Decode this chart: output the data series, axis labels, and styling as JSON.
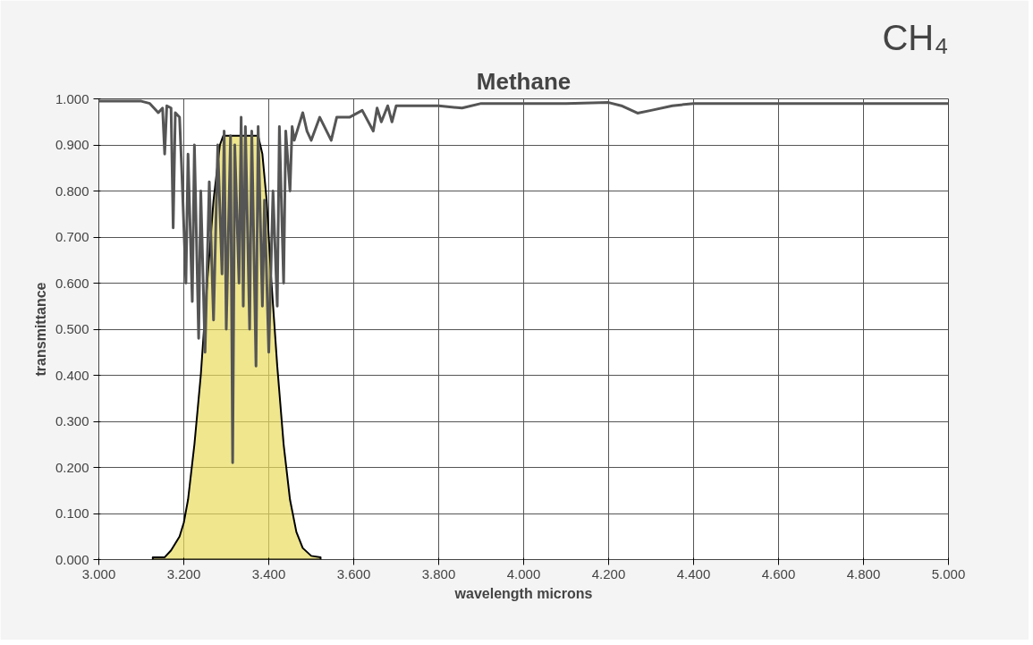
{
  "chart_data": {
    "type": "line",
    "title": "Methane",
    "xlabel": "wavelength microns",
    "ylabel": "transmittance",
    "annotations": [
      "CH₄"
    ],
    "xlim": [
      3.0,
      5.0
    ],
    "ylim": [
      0.0,
      1.0
    ],
    "xticks": [
      {
        "value": 3.0,
        "label": "3.000"
      },
      {
        "value": 3.2,
        "label": "3.200"
      },
      {
        "value": 3.4,
        "label": "3.400"
      },
      {
        "value": 3.6,
        "label": "3.600"
      },
      {
        "value": 3.8,
        "label": "3.800"
      },
      {
        "value": 4.0,
        "label": "4.000"
      },
      {
        "value": 4.2,
        "label": "4.200"
      },
      {
        "value": 4.4,
        "label": "4.400"
      },
      {
        "value": 4.6,
        "label": "4.600"
      },
      {
        "value": 4.8,
        "label": "4.800"
      },
      {
        "value": 5.0,
        "label": "5.000"
      }
    ],
    "yticks": [
      {
        "value": 0.0,
        "label": "0.000"
      },
      {
        "value": 0.1,
        "label": "0.100"
      },
      {
        "value": 0.2,
        "label": "0.200"
      },
      {
        "value": 0.3,
        "label": "0.300"
      },
      {
        "value": 0.4,
        "label": "0.400"
      },
      {
        "value": 0.5,
        "label": "0.500"
      },
      {
        "value": 0.6,
        "label": "0.600"
      },
      {
        "value": 0.7,
        "label": "0.700"
      },
      {
        "value": 0.8,
        "label": "0.800"
      },
      {
        "value": 0.9,
        "label": "0.900"
      },
      {
        "value": 1.0,
        "label": "1.000"
      }
    ],
    "grid": true,
    "marker": "none",
    "line_style": "solid",
    "series": [
      {
        "color": "#555555",
        "x": [
          3.0,
          3.1,
          3.12,
          3.14,
          3.15,
          3.155,
          3.16,
          3.17,
          3.175,
          3.18,
          3.19,
          3.195,
          3.205,
          3.21,
          3.22,
          3.225,
          3.235,
          3.24,
          3.25,
          3.26,
          3.27,
          3.28,
          3.29,
          3.295,
          3.3,
          3.31,
          3.315,
          3.32,
          3.33,
          3.335,
          3.34,
          3.345,
          3.355,
          3.36,
          3.37,
          3.375,
          3.385,
          3.39,
          3.4,
          3.41,
          3.42,
          3.425,
          3.435,
          3.44,
          3.45,
          3.455,
          3.46,
          3.48,
          3.49,
          3.5,
          3.52,
          3.547,
          3.56,
          3.59,
          3.62,
          3.646,
          3.655,
          3.665,
          3.68,
          3.69,
          3.7,
          3.77,
          3.8,
          3.855,
          3.9,
          4.0,
          4.1,
          4.2,
          4.23,
          4.268,
          4.3,
          4.35,
          4.4,
          4.5,
          4.6,
          4.7,
          4.8,
          4.9,
          5.0
        ],
        "values": [
          0.995,
          0.995,
          0.99,
          0.97,
          0.98,
          0.88,
          0.985,
          0.98,
          0.72,
          0.97,
          0.96,
          0.85,
          0.6,
          0.88,
          0.56,
          0.9,
          0.48,
          0.8,
          0.45,
          0.82,
          0.52,
          0.9,
          0.62,
          0.93,
          0.5,
          0.92,
          0.21,
          0.9,
          0.6,
          0.96,
          0.55,
          0.94,
          0.5,
          0.93,
          0.42,
          0.94,
          0.55,
          0.78,
          0.45,
          0.8,
          0.55,
          0.94,
          0.6,
          0.93,
          0.8,
          0.94,
          0.91,
          0.97,
          0.93,
          0.91,
          0.96,
          0.91,
          0.96,
          0.96,
          0.975,
          0.93,
          0.98,
          0.95,
          0.985,
          0.95,
          0.985,
          0.985,
          0.985,
          0.98,
          0.99,
          0.99,
          0.99,
          0.992,
          0.985,
          0.969,
          0.975,
          0.985,
          0.99,
          0.99,
          0.99,
          0.99,
          0.99,
          0.99,
          0.99
        ]
      },
      {
        "type": "area",
        "color": "#e8dc5c",
        "x": [
          3.127,
          3.155,
          3.17,
          3.19,
          3.2,
          3.21,
          3.225,
          3.24,
          3.255,
          3.27,
          3.285,
          3.293,
          3.375,
          3.385,
          3.395,
          3.405,
          3.42,
          3.435,
          3.45,
          3.465,
          3.48,
          3.5,
          3.522
        ],
        "values": [
          0.005,
          0.005,
          0.02,
          0.05,
          0.08,
          0.13,
          0.25,
          0.4,
          0.6,
          0.78,
          0.9,
          0.92,
          0.92,
          0.88,
          0.78,
          0.62,
          0.42,
          0.25,
          0.13,
          0.06,
          0.025,
          0.008,
          0.005
        ]
      }
    ]
  }
}
